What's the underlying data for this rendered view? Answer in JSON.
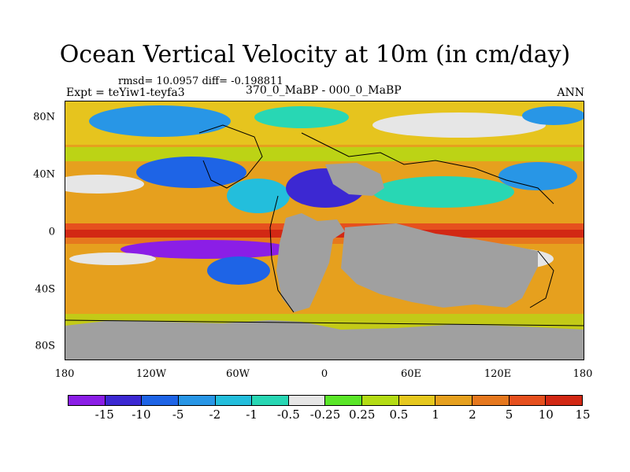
{
  "title": "Ocean Vertical Velocity at 10m (in cm/day)",
  "stats": "rmsd= 10.0957 diff= -0.198811",
  "experiment": "Expt = teYiw1-teyfa3",
  "comparison": "370_0_MaBP - 000_0_MaBP",
  "season": "ANN",
  "y_labels": [
    "80N",
    "40N",
    "0",
    "40S",
    "80S"
  ],
  "x_labels": [
    "180",
    "120W",
    "60W",
    "0",
    "60E",
    "120E",
    "180"
  ],
  "colorbar": {
    "colors": [
      "#8b1ee6",
      "#3c28d2",
      "#1e64e6",
      "#2896e6",
      "#23bedc",
      "#28d7b4",
      "#e6e6e6",
      "#5ae628",
      "#b4dc14",
      "#e6c81e",
      "#e6a01e",
      "#e6781e",
      "#e6501e",
      "#d22814"
    ],
    "labels": [
      "-15",
      "-10",
      "-5",
      "-2",
      "-1",
      "-0.5",
      "-0.25",
      "0.25",
      "0.5",
      "1",
      "2",
      "5",
      "10",
      "15"
    ]
  },
  "colors": {
    "land": "#a0a0a0",
    "background_field": "#e6a01e"
  }
}
